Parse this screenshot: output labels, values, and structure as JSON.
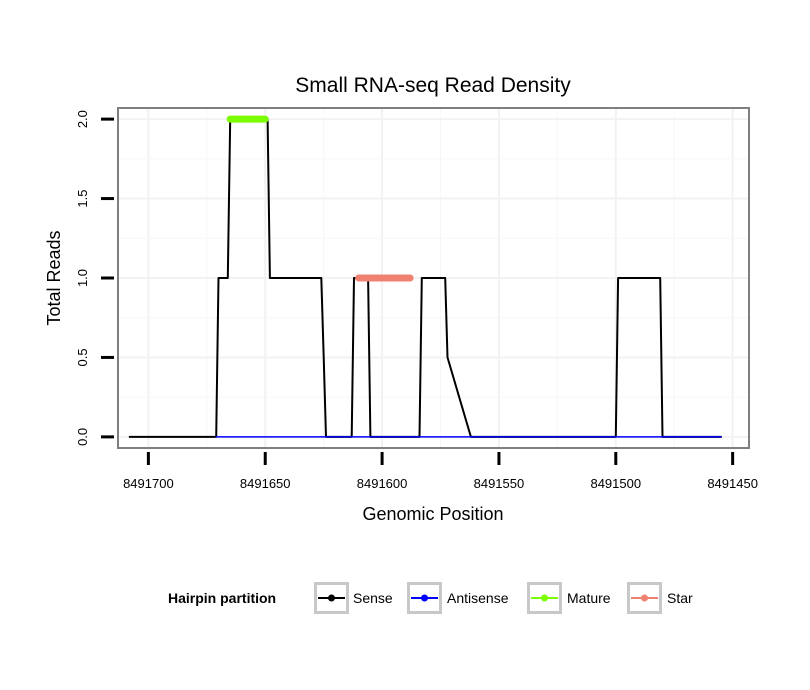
{
  "chart_data": {
    "type": "line",
    "title": "Small RNA-seq Read Density",
    "xlabel": "Genomic Position",
    "ylabel": "Total Reads",
    "xlim": [
      8491713,
      8491443
    ],
    "x_reversed": true,
    "ylim": [
      -0.07,
      2.07
    ],
    "x_ticks": [
      8491700,
      8491650,
      8491600,
      8491550,
      8491500,
      8491450
    ],
    "x_tick_labels": [
      "8491700",
      "8491650",
      "8491600",
      "8491550",
      "8491500",
      "8491450"
    ],
    "y_ticks": [
      0.0,
      0.5,
      1.0,
      1.5,
      2.0
    ],
    "y_tick_labels": [
      "0.0",
      "0.5",
      "1.0",
      "1.5",
      "2.0"
    ],
    "grid": true,
    "legend": {
      "title": "Hairpin partition",
      "position": "bottom",
      "entries": [
        {
          "name": "Sense",
          "color": "#000000"
        },
        {
          "name": "Antisense",
          "color": "#0000ff"
        },
        {
          "name": "Mature",
          "color": "#7cfc00"
        },
        {
          "name": "Star",
          "color": "#f08070"
        }
      ]
    },
    "series": [
      {
        "name": "Sense",
        "color": "#000000",
        "stroke_width": 2,
        "x": [
          8491708,
          8491671,
          8491670,
          8491666,
          8491665,
          8491649,
          8491648,
          8491627,
          8491626,
          8491625,
          8491624,
          8491613,
          8491612,
          8491606,
          8491605,
          8491584,
          8491583,
          8491573,
          8491572,
          8491562,
          8491561,
          8491545,
          8491544,
          8491544,
          8491543,
          8491500,
          8491499,
          8491481,
          8491480,
          8491455
        ],
        "values": [
          0,
          0,
          1,
          1,
          2,
          2,
          1,
          1,
          1,
          0.5,
          0,
          0,
          1,
          1,
          0,
          0,
          1,
          1,
          0.5,
          0,
          0,
          0,
          0,
          0,
          0,
          0,
          1,
          1,
          0,
          0
        ]
      },
      {
        "name": "Antisense",
        "color": "#0000ff",
        "stroke_width": 1.5,
        "x": [
          8491671,
          8491455
        ],
        "values": [
          0,
          0
        ]
      },
      {
        "name": "Mature",
        "color": "#7cfc00",
        "stroke_width": 7,
        "x": [
          8491665,
          8491650
        ],
        "values": [
          2,
          2
        ]
      },
      {
        "name": "Star",
        "color": "#f08070",
        "stroke_width": 7,
        "x": [
          8491610,
          8491588
        ],
        "values": [
          1,
          1
        ]
      }
    ]
  }
}
